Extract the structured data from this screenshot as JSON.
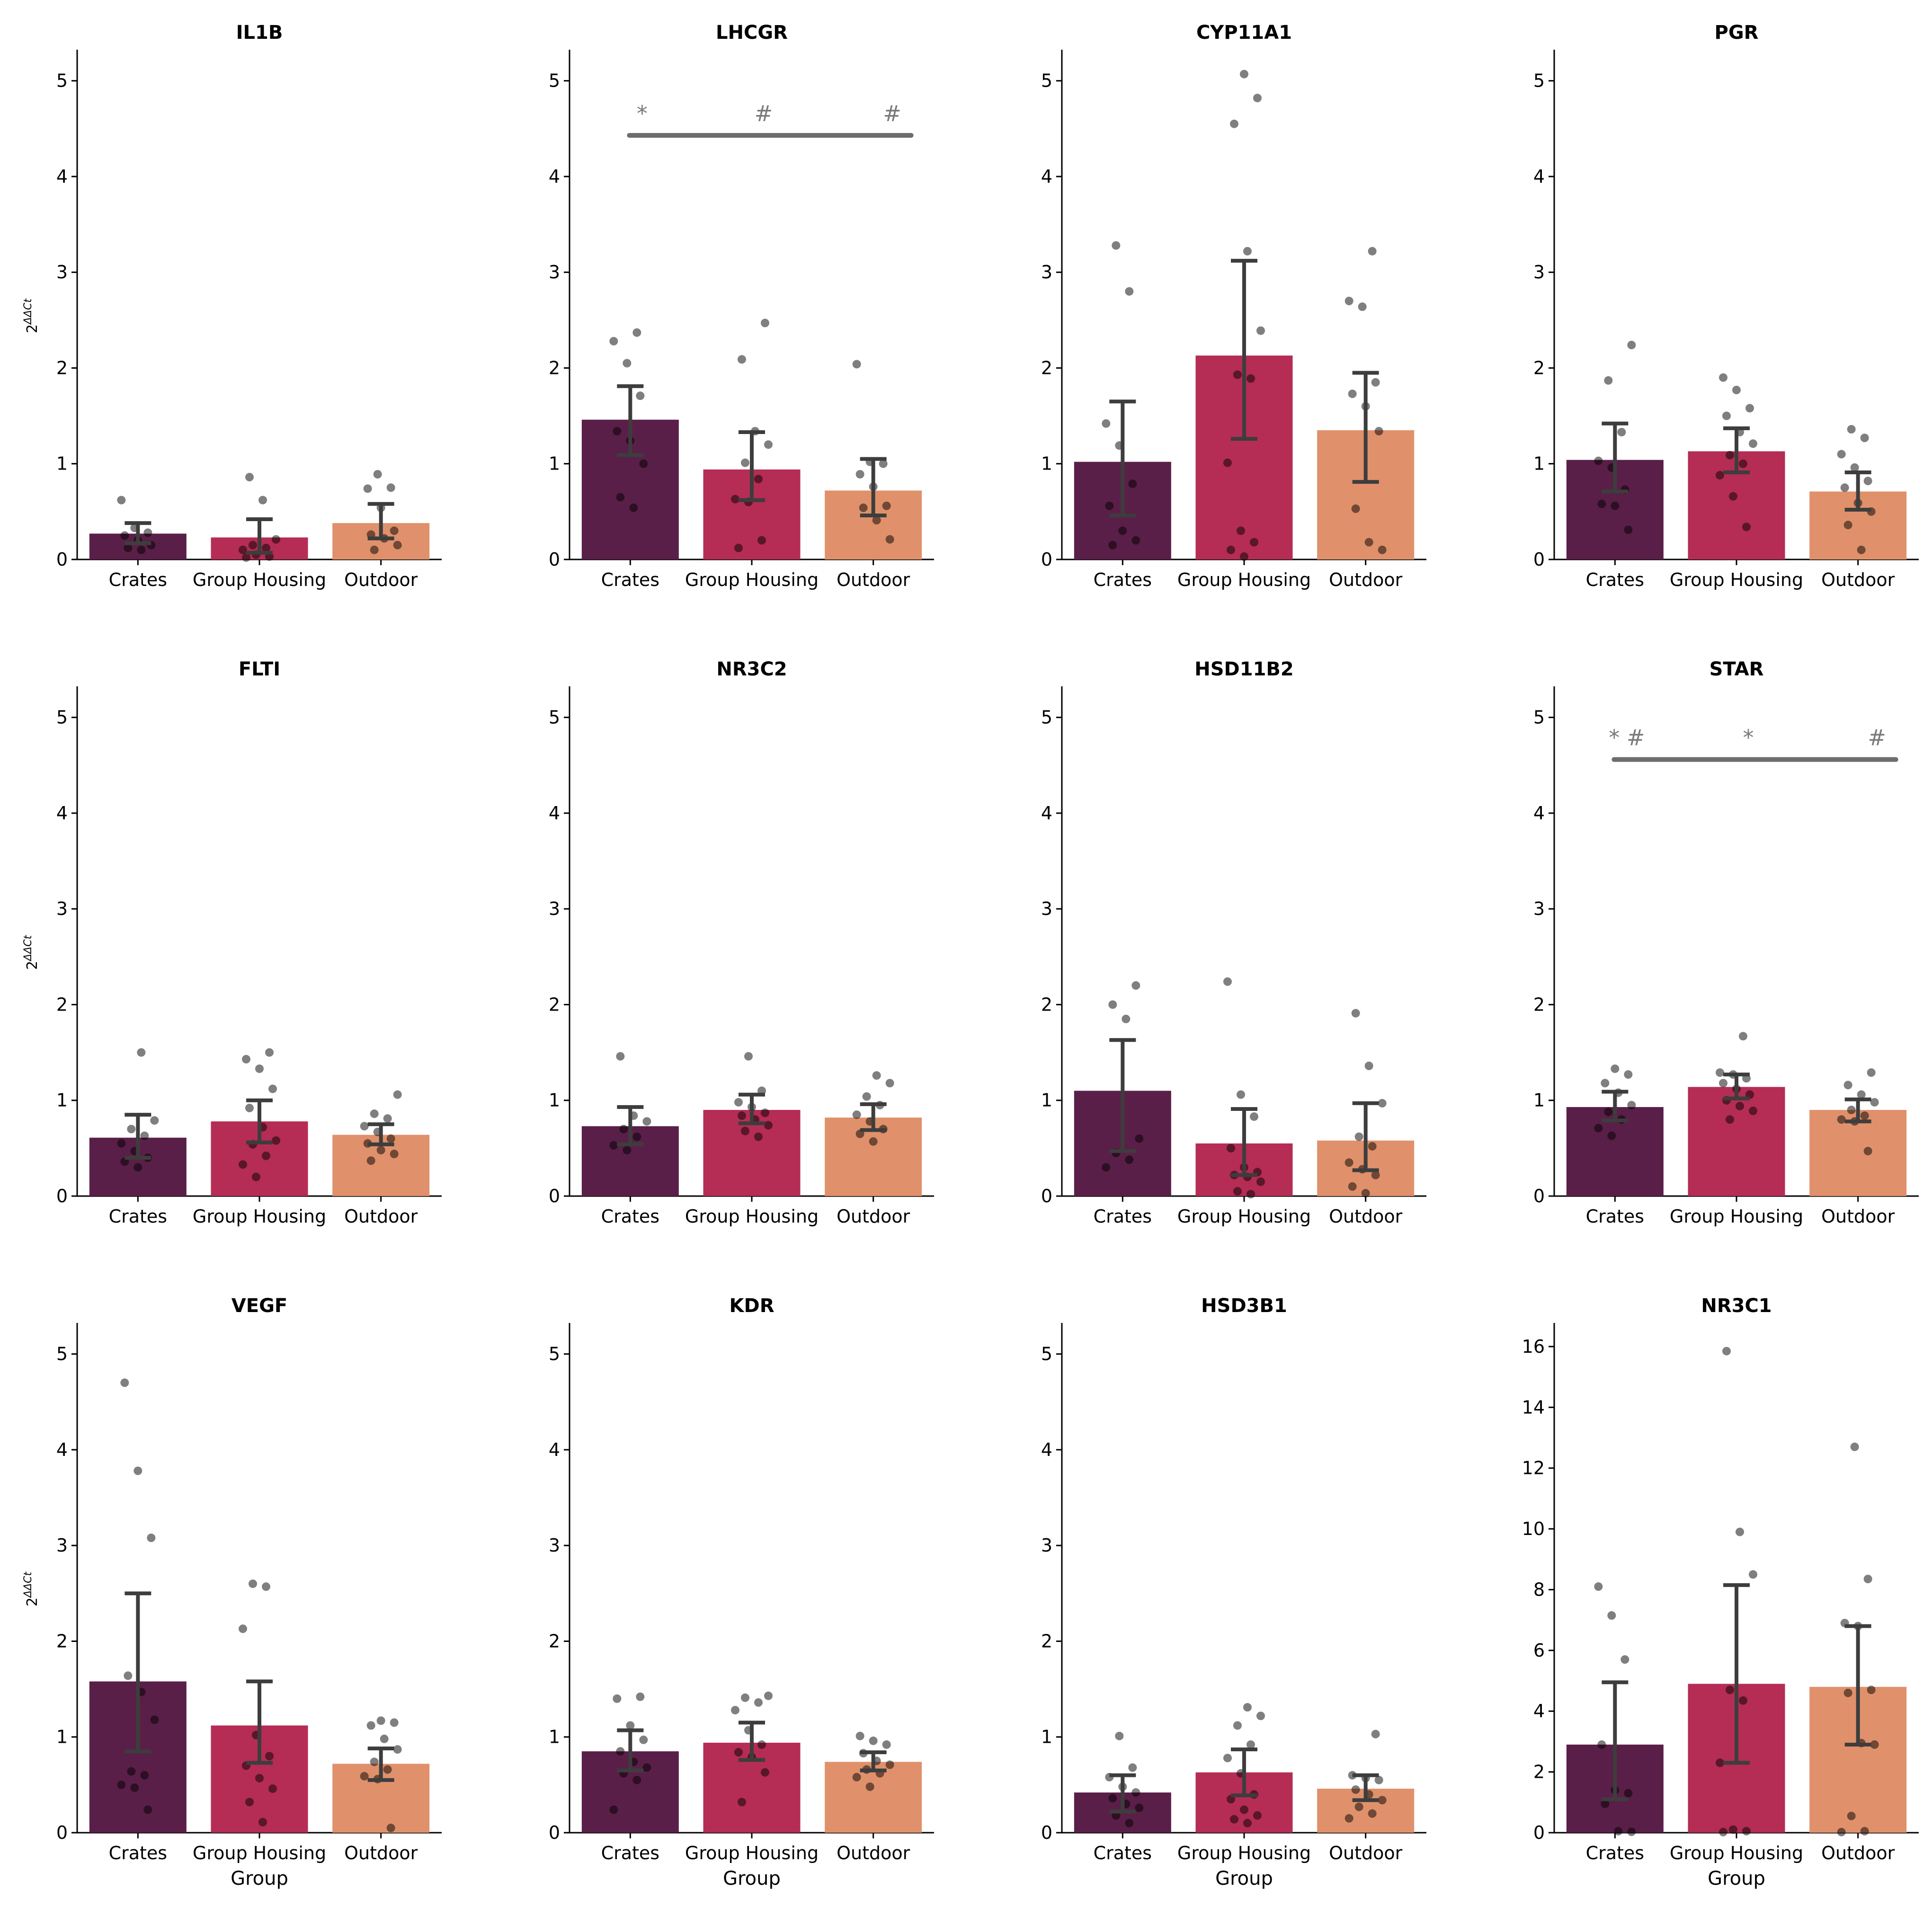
{
  "figure": {
    "x_axis_label": "Group",
    "y_axis_label_base": "2",
    "y_axis_label_exp": "ΔΔCt",
    "groups": [
      "Crates",
      "Group Housing",
      "Outdoor"
    ],
    "group_colors": [
      "#5a1f48",
      "#b52c55",
      "#e0916b"
    ]
  },
  "chart_data": [
    {
      "type": "bar",
      "title": "IL1B",
      "categories": [
        "Crates",
        "Group Housing",
        "Outdoor"
      ],
      "values": [
        0.27,
        0.23,
        0.38
      ],
      "error_low": [
        0.17,
        0.07,
        0.22
      ],
      "error_high": [
        0.38,
        0.42,
        0.58
      ],
      "points": [
        [
          0.62,
          0.33,
          0.28,
          0.25,
          0.2,
          0.15,
          0.12,
          0.1
        ],
        [
          0.86,
          0.62,
          0.21,
          0.15,
          0.12,
          0.1,
          0.05,
          0.03,
          0.02
        ],
        [
          0.89,
          0.75,
          0.74,
          0.54,
          0.3,
          0.26,
          0.22,
          0.15,
          0.1
        ]
      ],
      "ylim": [
        0,
        5.3
      ],
      "yticks": [
        0,
        1,
        2,
        3,
        4,
        5
      ],
      "ytick_labels": [
        "0",
        "1",
        "2",
        "3",
        "4",
        "5"
      ],
      "ylabel": "2^ΔΔCt",
      "xlabel": "",
      "significance": []
    },
    {
      "type": "bar",
      "title": "LHCGR",
      "categories": [
        "Crates",
        "Group Housing",
        "Outdoor"
      ],
      "values": [
        1.46,
        0.94,
        0.72
      ],
      "error_low": [
        1.09,
        0.62,
        0.46
      ],
      "error_high": [
        1.81,
        1.33,
        1.05
      ],
      "points": [
        [
          2.37,
          2.28,
          2.05,
          1.71,
          1.34,
          1.24,
          1.0,
          0.65,
          0.54
        ],
        [
          2.47,
          2.09,
          1.34,
          1.2,
          1.01,
          0.84,
          0.63,
          0.6,
          0.2,
          0.12
        ],
        [
          2.04,
          1.02,
          1.0,
          0.89,
          0.76,
          0.56,
          0.54,
          0.41,
          0.21
        ]
      ],
      "ylim": [
        0,
        5.3
      ],
      "yticks": [
        0,
        1,
        2,
        3,
        4,
        5
      ],
      "ytick_labels": [
        "0",
        "1",
        "2",
        "3",
        "4",
        "5"
      ],
      "ylabel": "",
      "xlabel": "",
      "significance": [
        "*",
        "#",
        "#"
      ]
    },
    {
      "type": "bar",
      "title": "CYP11A1",
      "categories": [
        "Crates",
        "Group Housing",
        "Outdoor"
      ],
      "values": [
        1.02,
        2.13,
        1.35
      ],
      "error_low": [
        0.46,
        1.26,
        0.81
      ],
      "error_high": [
        1.65,
        3.12,
        1.95
      ],
      "points": [
        [
          3.28,
          2.8,
          1.42,
          1.19,
          0.79,
          0.56,
          0.3,
          0.2,
          0.15
        ],
        [
          5.07,
          4.82,
          4.55,
          3.22,
          2.39,
          1.93,
          1.89,
          1.01,
          0.3,
          0.18,
          0.1,
          0.03
        ],
        [
          3.22,
          2.7,
          2.64,
          1.85,
          1.73,
          1.6,
          1.34,
          0.53,
          0.18,
          0.1
        ]
      ],
      "ylim": [
        0,
        5.3
      ],
      "yticks": [
        0,
        1,
        2,
        3,
        4,
        5
      ],
      "ytick_labels": [
        "0",
        "1",
        "2",
        "3",
        "4",
        "5"
      ],
      "ylabel": "",
      "xlabel": "",
      "significance": []
    },
    {
      "type": "bar",
      "title": "PGR",
      "categories": [
        "Crates",
        "Group Housing",
        "Outdoor"
      ],
      "values": [
        1.04,
        1.13,
        0.71
      ],
      "error_low": [
        0.71,
        0.91,
        0.52
      ],
      "error_high": [
        1.42,
        1.37,
        0.91
      ],
      "points": [
        [
          2.24,
          1.87,
          1.33,
          1.03,
          0.96,
          0.73,
          0.58,
          0.56,
          0.31
        ],
        [
          1.9,
          1.77,
          1.58,
          1.5,
          1.33,
          1.21,
          1.09,
          1.0,
          0.88,
          0.66,
          0.34
        ],
        [
          1.36,
          1.27,
          1.1,
          0.96,
          0.82,
          0.75,
          0.59,
          0.5,
          0.36,
          0.1
        ]
      ],
      "ylim": [
        0,
        5.3
      ],
      "yticks": [
        0,
        1,
        2,
        3,
        4,
        5
      ],
      "ytick_labels": [
        "0",
        "1",
        "2",
        "3",
        "4",
        "5"
      ],
      "ylabel": "",
      "xlabel": "",
      "significance": []
    },
    {
      "type": "bar",
      "title": "FLTI",
      "categories": [
        "Crates",
        "Group Housing",
        "Outdoor"
      ],
      "values": [
        0.61,
        0.78,
        0.64
      ],
      "error_low": [
        0.4,
        0.56,
        0.54
      ],
      "error_high": [
        0.85,
        1.0,
        0.75
      ],
      "points": [
        [
          1.5,
          0.79,
          0.7,
          0.63,
          0.55,
          0.47,
          0.4,
          0.36,
          0.3
        ],
        [
          1.5,
          1.43,
          1.33,
          1.12,
          0.92,
          0.72,
          0.58,
          0.54,
          0.42,
          0.33,
          0.2
        ],
        [
          1.06,
          0.86,
          0.81,
          0.73,
          0.67,
          0.6,
          0.55,
          0.48,
          0.44,
          0.37
        ]
      ],
      "ylim": [
        0,
        5.3
      ],
      "yticks": [
        0,
        1,
        2,
        3,
        4,
        5
      ],
      "ytick_labels": [
        "0",
        "1",
        "2",
        "3",
        "4",
        "5"
      ],
      "ylabel": "2^ΔΔCt",
      "xlabel": "",
      "significance": []
    },
    {
      "type": "bar",
      "title": "NR3C2",
      "categories": [
        "Crates",
        "Group Housing",
        "Outdoor"
      ],
      "values": [
        0.73,
        0.9,
        0.82
      ],
      "error_low": [
        0.54,
        0.76,
        0.69
      ],
      "error_high": [
        0.93,
        1.06,
        0.96
      ],
      "points": [
        [
          1.46,
          0.84,
          0.78,
          0.7,
          0.62,
          0.53,
          0.48
        ],
        [
          1.46,
          1.1,
          0.98,
          0.93,
          0.87,
          0.84,
          0.8,
          0.74,
          0.68,
          0.62
        ],
        [
          1.26,
          1.18,
          1.04,
          0.95,
          0.85,
          0.78,
          0.7,
          0.65,
          0.57
        ]
      ],
      "ylim": [
        0,
        5.3
      ],
      "yticks": [
        0,
        1,
        2,
        3,
        4,
        5
      ],
      "ytick_labels": [
        "0",
        "1",
        "2",
        "3",
        "4",
        "5"
      ],
      "ylabel": "",
      "xlabel": "",
      "significance": []
    },
    {
      "type": "bar",
      "title": "HSD11B2",
      "categories": [
        "Crates",
        "Group Housing",
        "Outdoor"
      ],
      "values": [
        1.1,
        0.55,
        0.58
      ],
      "error_low": [
        0.47,
        0.22,
        0.27
      ],
      "error_high": [
        1.63,
        0.91,
        0.97
      ],
      "points": [
        [
          2.2,
          2.0,
          1.85,
          0.6,
          0.45,
          0.38,
          0.3
        ],
        [
          2.24,
          1.06,
          0.83,
          0.5,
          0.3,
          0.25,
          0.22,
          0.2,
          0.15,
          0.05,
          0.02
        ],
        [
          1.91,
          1.36,
          0.97,
          0.62,
          0.52,
          0.35,
          0.28,
          0.22,
          0.1,
          0.03
        ]
      ],
      "ylim": [
        0,
        5.3
      ],
      "yticks": [
        0,
        1,
        2,
        3,
        4,
        5
      ],
      "ytick_labels": [
        "0",
        "1",
        "2",
        "3",
        "4",
        "5"
      ],
      "ylabel": "",
      "xlabel": "",
      "significance": []
    },
    {
      "type": "bar",
      "title": "STAR",
      "categories": [
        "Crates",
        "Group Housing",
        "Outdoor"
      ],
      "values": [
        0.93,
        1.14,
        0.9
      ],
      "error_low": [
        0.79,
        1.02,
        0.78
      ],
      "error_high": [
        1.09,
        1.27,
        1.01
      ],
      "points": [
        [
          1.33,
          1.27,
          1.18,
          1.08,
          0.95,
          0.88,
          0.8,
          0.71,
          0.63
        ],
        [
          1.67,
          1.29,
          1.27,
          1.23,
          1.18,
          1.12,
          1.06,
          1.0,
          0.94,
          0.89,
          0.8
        ],
        [
          1.29,
          1.16,
          1.06,
          0.98,
          0.9,
          0.84,
          0.8,
          0.78,
          0.47
        ]
      ],
      "ylim": [
        0,
        5.3
      ],
      "yticks": [
        0,
        1,
        2,
        3,
        4,
        5
      ],
      "ytick_labels": [
        "0",
        "1",
        "2",
        "3",
        "4",
        "5"
      ],
      "ylabel": "",
      "xlabel": "",
      "significance": [
        "* #",
        "*",
        "#"
      ]
    },
    {
      "type": "bar",
      "title": "VEGF",
      "categories": [
        "Crates",
        "Group Housing",
        "Outdoor"
      ],
      "values": [
        1.58,
        1.12,
        0.72
      ],
      "error_low": [
        0.85,
        0.73,
        0.55
      ],
      "error_high": [
        2.5,
        1.58,
        0.88
      ],
      "points": [
        [
          4.7,
          3.78,
          3.08,
          1.64,
          1.47,
          1.18,
          0.64,
          0.6,
          0.5,
          0.47,
          0.24
        ],
        [
          2.6,
          2.57,
          2.13,
          1.02,
          0.8,
          0.7,
          0.57,
          0.46,
          0.32,
          0.11
        ],
        [
          1.17,
          1.15,
          1.12,
          0.98,
          0.87,
          0.74,
          0.66,
          0.59,
          0.56,
          0.05
        ]
      ],
      "ylim": [
        0,
        5.3
      ],
      "yticks": [
        0,
        1,
        2,
        3,
        4,
        5
      ],
      "ytick_labels": [
        "0",
        "1",
        "2",
        "3",
        "4",
        "5"
      ],
      "ylabel": "2^ΔΔCt",
      "xlabel": "Group",
      "significance": []
    },
    {
      "type": "bar",
      "title": "KDR",
      "categories": [
        "Crates",
        "Group Housing",
        "Outdoor"
      ],
      "values": [
        0.85,
        0.94,
        0.74
      ],
      "error_low": [
        0.65,
        0.76,
        0.65
      ],
      "error_high": [
        1.07,
        1.15,
        0.84
      ],
      "points": [
        [
          1.42,
          1.4,
          1.12,
          0.97,
          0.85,
          0.74,
          0.68,
          0.62,
          0.55,
          0.24
        ],
        [
          1.43,
          1.41,
          1.36,
          1.28,
          1.07,
          0.92,
          0.84,
          0.79,
          0.63,
          0.32
        ],
        [
          1.01,
          0.96,
          0.92,
          0.83,
          0.75,
          0.71,
          0.66,
          0.62,
          0.58,
          0.48
        ]
      ],
      "ylim": [
        0,
        5.3
      ],
      "yticks": [
        0,
        1,
        2,
        3,
        4,
        5
      ],
      "ytick_labels": [
        "0",
        "1",
        "2",
        "3",
        "4",
        "5"
      ],
      "ylabel": "",
      "xlabel": "Group",
      "significance": []
    },
    {
      "type": "bar",
      "title": "HSD3B1",
      "categories": [
        "Crates",
        "Group Housing",
        "Outdoor"
      ],
      "values": [
        0.42,
        0.63,
        0.46
      ],
      "error_low": [
        0.22,
        0.39,
        0.34
      ],
      "error_high": [
        0.6,
        0.87,
        0.6
      ],
      "points": [
        [
          1.01,
          0.68,
          0.58,
          0.48,
          0.42,
          0.36,
          0.3,
          0.26,
          0.18,
          0.1
        ],
        [
          1.31,
          1.22,
          1.12,
          0.92,
          0.78,
          0.62,
          0.4,
          0.35,
          0.24,
          0.18,
          0.14,
          0.1
        ],
        [
          1.03,
          0.6,
          0.57,
          0.55,
          0.45,
          0.4,
          0.34,
          0.27,
          0.2,
          0.15
        ]
      ],
      "ylim": [
        0,
        5.3
      ],
      "yticks": [
        0,
        1,
        2,
        3,
        4,
        5
      ],
      "ytick_labels": [
        "0",
        "1",
        "2",
        "3",
        "4",
        "5"
      ],
      "ylabel": "",
      "xlabel": "Group",
      "significance": []
    },
    {
      "type": "bar",
      "title": "NR3C1",
      "categories": [
        "Crates",
        "Group Housing",
        "Outdoor"
      ],
      "values": [
        2.9,
        4.9,
        4.8
      ],
      "error_low": [
        1.1,
        2.3,
        2.9
      ],
      "error_high": [
        4.95,
        8.15,
        6.8
      ],
      "points": [
        [
          8.1,
          7.15,
          5.7,
          2.9,
          1.4,
          1.3,
          0.95,
          0.05,
          0.03
        ],
        [
          15.85,
          9.9,
          8.5,
          4.7,
          4.35,
          2.3,
          0.1,
          0.05,
          0.02
        ],
        [
          12.7,
          8.35,
          6.9,
          6.8,
          4.7,
          4.6,
          2.95,
          2.9,
          0.55,
          0.05,
          0.02
        ]
      ],
      "ylim": [
        0,
        16.7
      ],
      "yticks": [
        0,
        2,
        4,
        6,
        8,
        10,
        12,
        14,
        16
      ],
      "ytick_labels": [
        "0",
        "2",
        "4",
        "6",
        "8",
        "10",
        "12",
        "14",
        "16"
      ],
      "ylabel": "",
      "xlabel": "Group",
      "significance": []
    }
  ]
}
